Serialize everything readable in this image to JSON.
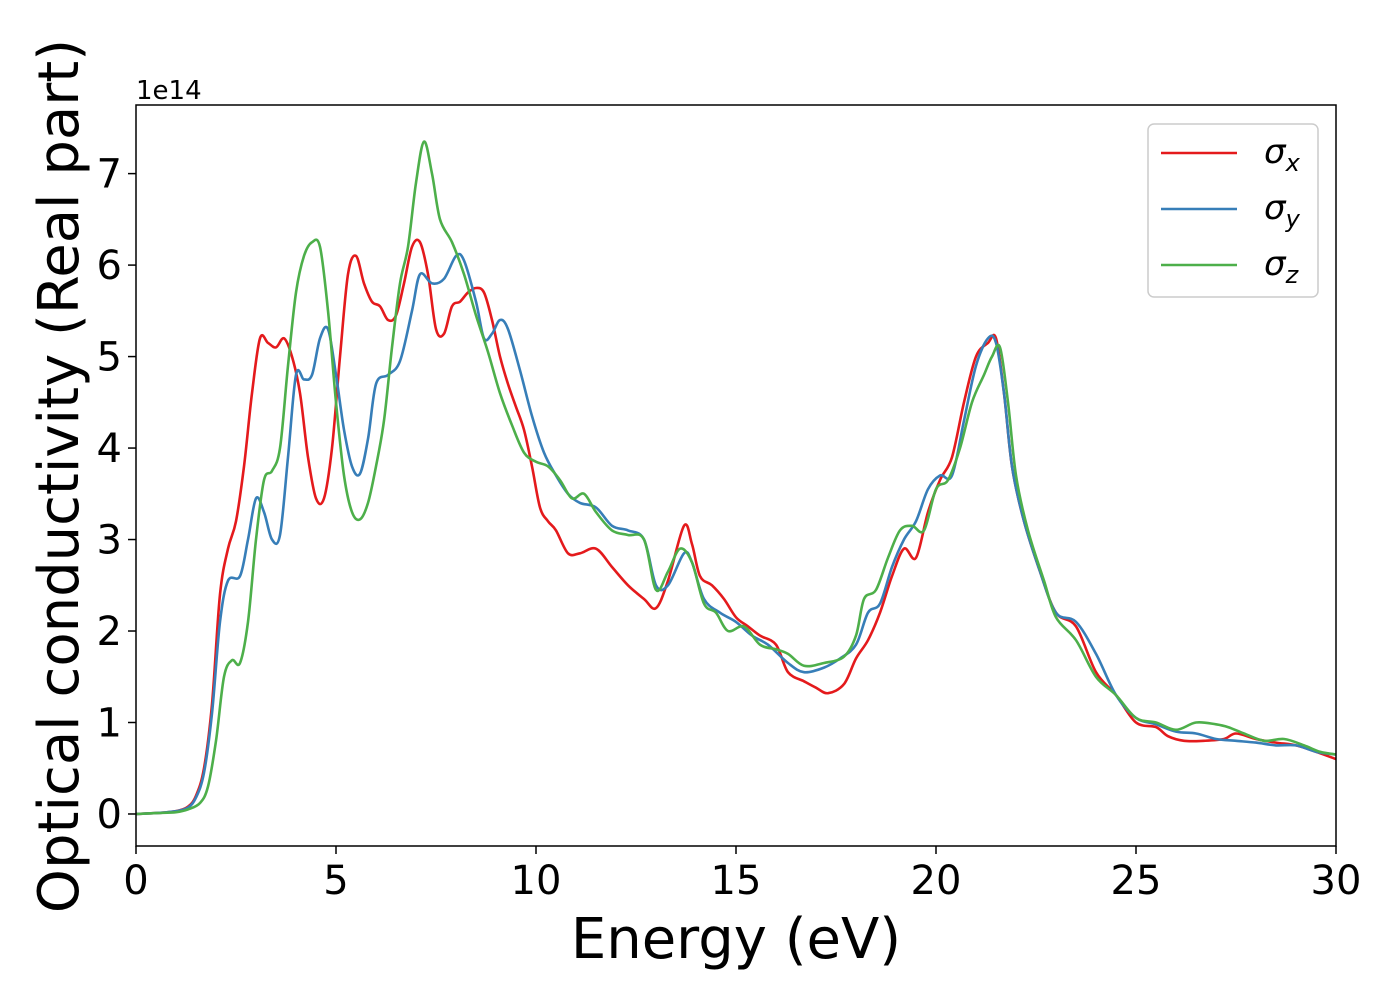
{
  "chart_data": {
    "type": "line",
    "xlabel": "Energy (eV)",
    "ylabel": "Optical conductivity (Real part)",
    "y_offset_label": "1e14",
    "xlim": [
      0,
      30
    ],
    "ylim": [
      -0.35,
      7.75
    ],
    "x_ticks": [
      "0",
      "5",
      "10",
      "15",
      "20",
      "25",
      "30"
    ],
    "y_ticks": [
      "0",
      "1",
      "2",
      "3",
      "4",
      "5",
      "6",
      "7"
    ],
    "grid": false,
    "legend_position": "top-right",
    "series": [
      {
        "name": "σx",
        "symbol": "σ",
        "subscript": "x",
        "color": "#e41a1c",
        "points": [
          [
            0,
            0
          ],
          [
            0.5,
            0.01
          ],
          [
            1,
            0.03
          ],
          [
            1.3,
            0.08
          ],
          [
            1.5,
            0.2
          ],
          [
            1.7,
            0.5
          ],
          [
            1.9,
            1.2
          ],
          [
            2.1,
            2.4
          ],
          [
            2.3,
            2.9
          ],
          [
            2.5,
            3.2
          ],
          [
            2.7,
            3.8
          ],
          [
            2.9,
            4.6
          ],
          [
            3.1,
            5.2
          ],
          [
            3.3,
            5.15
          ],
          [
            3.5,
            5.1
          ],
          [
            3.7,
            5.2
          ],
          [
            3.9,
            5.0
          ],
          [
            4.1,
            4.6
          ],
          [
            4.3,
            3.9
          ],
          [
            4.5,
            3.45
          ],
          [
            4.7,
            3.45
          ],
          [
            4.9,
            4.0
          ],
          [
            5.1,
            5.0
          ],
          [
            5.3,
            5.9
          ],
          [
            5.5,
            6.1
          ],
          [
            5.7,
            5.8
          ],
          [
            5.9,
            5.6
          ],
          [
            6.1,
            5.55
          ],
          [
            6.3,
            5.4
          ],
          [
            6.5,
            5.45
          ],
          [
            6.7,
            5.8
          ],
          [
            6.9,
            6.2
          ],
          [
            7.1,
            6.25
          ],
          [
            7.3,
            5.9
          ],
          [
            7.5,
            5.3
          ],
          [
            7.7,
            5.25
          ],
          [
            7.9,
            5.55
          ],
          [
            8.1,
            5.6
          ],
          [
            8.3,
            5.7
          ],
          [
            8.5,
            5.75
          ],
          [
            8.7,
            5.7
          ],
          [
            8.9,
            5.4
          ],
          [
            9.1,
            5.0
          ],
          [
            9.3,
            4.7
          ],
          [
            9.5,
            4.45
          ],
          [
            9.7,
            4.2
          ],
          [
            9.9,
            3.8
          ],
          [
            10.1,
            3.35
          ],
          [
            10.3,
            3.2
          ],
          [
            10.5,
            3.1
          ],
          [
            10.8,
            2.85
          ],
          [
            11.1,
            2.85
          ],
          [
            11.5,
            2.9
          ],
          [
            11.9,
            2.7
          ],
          [
            12.3,
            2.5
          ],
          [
            12.7,
            2.35
          ],
          [
            13.0,
            2.25
          ],
          [
            13.3,
            2.55
          ],
          [
            13.7,
            3.15
          ],
          [
            13.9,
            2.95
          ],
          [
            14.1,
            2.6
          ],
          [
            14.4,
            2.5
          ],
          [
            14.7,
            2.35
          ],
          [
            15.0,
            2.15
          ],
          [
            15.3,
            2.05
          ],
          [
            15.6,
            1.95
          ],
          [
            16.0,
            1.85
          ],
          [
            16.3,
            1.55
          ],
          [
            16.7,
            1.45
          ],
          [
            17.0,
            1.38
          ],
          [
            17.3,
            1.32
          ],
          [
            17.7,
            1.42
          ],
          [
            18.0,
            1.7
          ],
          [
            18.3,
            1.9
          ],
          [
            18.6,
            2.2
          ],
          [
            18.9,
            2.6
          ],
          [
            19.2,
            2.9
          ],
          [
            19.5,
            2.8
          ],
          [
            19.8,
            3.3
          ],
          [
            20.1,
            3.65
          ],
          [
            20.4,
            3.9
          ],
          [
            20.7,
            4.5
          ],
          [
            21.0,
            5.0
          ],
          [
            21.3,
            5.15
          ],
          [
            21.5,
            5.2
          ],
          [
            21.7,
            4.6
          ],
          [
            21.9,
            3.8
          ],
          [
            22.2,
            3.2
          ],
          [
            22.6,
            2.65
          ],
          [
            23.0,
            2.2
          ],
          [
            23.5,
            2.05
          ],
          [
            24.0,
            1.55
          ],
          [
            24.5,
            1.3
          ],
          [
            25.0,
            1.0
          ],
          [
            25.5,
            0.95
          ],
          [
            25.8,
            0.85
          ],
          [
            26.2,
            0.8
          ],
          [
            26.7,
            0.8
          ],
          [
            27.2,
            0.82
          ],
          [
            27.5,
            0.88
          ],
          [
            28.0,
            0.82
          ],
          [
            28.5,
            0.78
          ],
          [
            29.0,
            0.75
          ],
          [
            29.5,
            0.68
          ],
          [
            30,
            0.6
          ]
        ]
      },
      {
        "name": "σy",
        "symbol": "σ",
        "subscript": "y",
        "color": "#377eb8",
        "points": [
          [
            0,
            0
          ],
          [
            0.5,
            0.01
          ],
          [
            1,
            0.03
          ],
          [
            1.3,
            0.07
          ],
          [
            1.5,
            0.18
          ],
          [
            1.7,
            0.45
          ],
          [
            1.9,
            1.1
          ],
          [
            2.1,
            2.1
          ],
          [
            2.3,
            2.55
          ],
          [
            2.6,
            2.6
          ],
          [
            2.8,
            3.0
          ],
          [
            3.0,
            3.45
          ],
          [
            3.2,
            3.3
          ],
          [
            3.4,
            3.0
          ],
          [
            3.6,
            3.05
          ],
          [
            3.8,
            3.9
          ],
          [
            4.0,
            4.8
          ],
          [
            4.2,
            4.75
          ],
          [
            4.4,
            4.8
          ],
          [
            4.6,
            5.2
          ],
          [
            4.8,
            5.3
          ],
          [
            5.0,
            4.8
          ],
          [
            5.2,
            4.2
          ],
          [
            5.4,
            3.8
          ],
          [
            5.6,
            3.72
          ],
          [
            5.8,
            4.1
          ],
          [
            6.0,
            4.7
          ],
          [
            6.3,
            4.8
          ],
          [
            6.6,
            4.95
          ],
          [
            6.9,
            5.5
          ],
          [
            7.1,
            5.9
          ],
          [
            7.4,
            5.8
          ],
          [
            7.7,
            5.85
          ],
          [
            8.0,
            6.1
          ],
          [
            8.2,
            6.05
          ],
          [
            8.5,
            5.6
          ],
          [
            8.7,
            5.2
          ],
          [
            8.9,
            5.25
          ],
          [
            9.1,
            5.4
          ],
          [
            9.3,
            5.3
          ],
          [
            9.6,
            4.85
          ],
          [
            9.9,
            4.35
          ],
          [
            10.2,
            3.95
          ],
          [
            10.5,
            3.7
          ],
          [
            10.8,
            3.5
          ],
          [
            11.1,
            3.4
          ],
          [
            11.5,
            3.35
          ],
          [
            11.9,
            3.15
          ],
          [
            12.3,
            3.1
          ],
          [
            12.7,
            3.0
          ],
          [
            13.0,
            2.5
          ],
          [
            13.3,
            2.5
          ],
          [
            13.7,
            2.85
          ],
          [
            13.9,
            2.75
          ],
          [
            14.2,
            2.35
          ],
          [
            14.6,
            2.2
          ],
          [
            15.0,
            2.1
          ],
          [
            15.4,
            1.95
          ],
          [
            15.8,
            1.85
          ],
          [
            16.3,
            1.65
          ],
          [
            16.7,
            1.55
          ],
          [
            17.2,
            1.6
          ],
          [
            17.6,
            1.7
          ],
          [
            18.0,
            1.85
          ],
          [
            18.3,
            2.2
          ],
          [
            18.6,
            2.3
          ],
          [
            18.9,
            2.7
          ],
          [
            19.2,
            3.0
          ],
          [
            19.5,
            3.2
          ],
          [
            19.8,
            3.55
          ],
          [
            20.1,
            3.7
          ],
          [
            20.4,
            3.7
          ],
          [
            20.7,
            4.3
          ],
          [
            21.0,
            4.9
          ],
          [
            21.3,
            5.2
          ],
          [
            21.5,
            5.15
          ],
          [
            21.7,
            4.6
          ],
          [
            21.9,
            3.8
          ],
          [
            22.2,
            3.2
          ],
          [
            22.6,
            2.65
          ],
          [
            23.0,
            2.2
          ],
          [
            23.5,
            2.1
          ],
          [
            24.0,
            1.75
          ],
          [
            24.5,
            1.3
          ],
          [
            25.0,
            1.05
          ],
          [
            25.5,
            0.98
          ],
          [
            26.0,
            0.9
          ],
          [
            26.5,
            0.88
          ],
          [
            27.0,
            0.82
          ],
          [
            27.5,
            0.8
          ],
          [
            28.0,
            0.78
          ],
          [
            28.5,
            0.75
          ],
          [
            29.0,
            0.75
          ],
          [
            29.5,
            0.68
          ],
          [
            30,
            0.65
          ]
        ]
      },
      {
        "name": "σz",
        "symbol": "σ",
        "subscript": "z",
        "color": "#4daf4a",
        "points": [
          [
            0,
            0
          ],
          [
            0.5,
            0.01
          ],
          [
            1,
            0.02
          ],
          [
            1.3,
            0.05
          ],
          [
            1.6,
            0.12
          ],
          [
            1.8,
            0.3
          ],
          [
            2.0,
            0.8
          ],
          [
            2.2,
            1.5
          ],
          [
            2.4,
            1.68
          ],
          [
            2.6,
            1.65
          ],
          [
            2.8,
            2.1
          ],
          [
            3.0,
            3.0
          ],
          [
            3.2,
            3.65
          ],
          [
            3.4,
            3.75
          ],
          [
            3.6,
            4.0
          ],
          [
            3.8,
            4.9
          ],
          [
            4.0,
            5.7
          ],
          [
            4.2,
            6.1
          ],
          [
            4.4,
            6.25
          ],
          [
            4.6,
            6.2
          ],
          [
            4.8,
            5.5
          ],
          [
            5.0,
            4.5
          ],
          [
            5.2,
            3.7
          ],
          [
            5.4,
            3.3
          ],
          [
            5.6,
            3.22
          ],
          [
            5.8,
            3.4
          ],
          [
            6.0,
            3.8
          ],
          [
            6.2,
            4.3
          ],
          [
            6.4,
            5.1
          ],
          [
            6.6,
            5.8
          ],
          [
            6.8,
            6.2
          ],
          [
            7.0,
            6.9
          ],
          [
            7.2,
            7.35
          ],
          [
            7.4,
            7.0
          ],
          [
            7.6,
            6.5
          ],
          [
            7.9,
            6.25
          ],
          [
            8.2,
            5.9
          ],
          [
            8.5,
            5.45
          ],
          [
            8.8,
            5.05
          ],
          [
            9.1,
            4.6
          ],
          [
            9.4,
            4.25
          ],
          [
            9.7,
            3.95
          ],
          [
            10.0,
            3.85
          ],
          [
            10.3,
            3.8
          ],
          [
            10.6,
            3.65
          ],
          [
            10.9,
            3.45
          ],
          [
            11.2,
            3.5
          ],
          [
            11.5,
            3.3
          ],
          [
            11.9,
            3.1
          ],
          [
            12.3,
            3.05
          ],
          [
            12.7,
            3.0
          ],
          [
            13.0,
            2.45
          ],
          [
            13.3,
            2.65
          ],
          [
            13.6,
            2.9
          ],
          [
            13.9,
            2.75
          ],
          [
            14.2,
            2.3
          ],
          [
            14.5,
            2.2
          ],
          [
            14.8,
            2.0
          ],
          [
            15.2,
            2.05
          ],
          [
            15.6,
            1.85
          ],
          [
            16.0,
            1.8
          ],
          [
            16.3,
            1.75
          ],
          [
            16.7,
            1.62
          ],
          [
            17.2,
            1.65
          ],
          [
            17.7,
            1.72
          ],
          [
            18.0,
            1.95
          ],
          [
            18.2,
            2.35
          ],
          [
            18.5,
            2.45
          ],
          [
            18.8,
            2.8
          ],
          [
            19.1,
            3.1
          ],
          [
            19.4,
            3.15
          ],
          [
            19.7,
            3.1
          ],
          [
            20.0,
            3.55
          ],
          [
            20.3,
            3.65
          ],
          [
            20.6,
            4.0
          ],
          [
            20.9,
            4.5
          ],
          [
            21.2,
            4.8
          ],
          [
            21.4,
            5.0
          ],
          [
            21.6,
            5.1
          ],
          [
            21.8,
            4.5
          ],
          [
            22.0,
            3.7
          ],
          [
            22.3,
            3.1
          ],
          [
            22.7,
            2.55
          ],
          [
            23.0,
            2.15
          ],
          [
            23.5,
            1.9
          ],
          [
            24.0,
            1.5
          ],
          [
            24.5,
            1.3
          ],
          [
            25.0,
            1.05
          ],
          [
            25.5,
            1.0
          ],
          [
            26.0,
            0.92
          ],
          [
            26.5,
            1.0
          ],
          [
            27.0,
            0.98
          ],
          [
            27.3,
            0.95
          ],
          [
            27.7,
            0.88
          ],
          [
            28.2,
            0.8
          ],
          [
            28.7,
            0.82
          ],
          [
            29.2,
            0.75
          ],
          [
            29.6,
            0.68
          ],
          [
            30,
            0.65
          ]
        ]
      }
    ]
  }
}
